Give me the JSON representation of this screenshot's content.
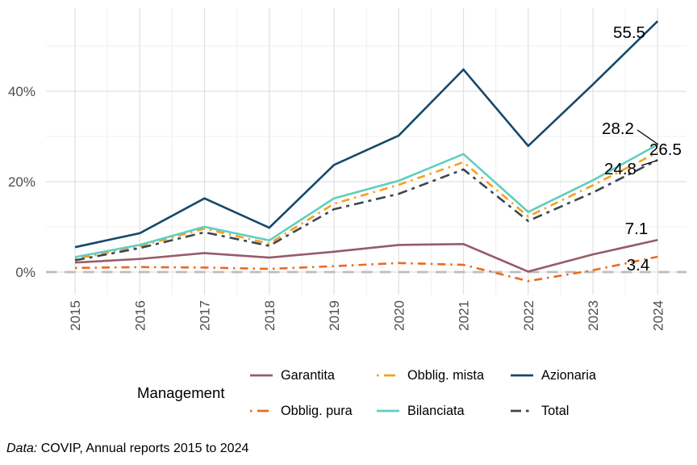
{
  "chart_data": {
    "type": "line",
    "x": [
      2015,
      2016,
      2017,
      2018,
      2019,
      2020,
      2021,
      2022,
      2023,
      2024
    ],
    "series": [
      {
        "name": "Garantita",
        "color": "#975B68",
        "linetype": "solid",
        "values": [
          2.1,
          2.9,
          4.2,
          3.2,
          4.5,
          6.0,
          6.2,
          0.1,
          3.9,
          7.1
        ],
        "end_label": "7.1"
      },
      {
        "name": "Obblig. pura",
        "color": "#EC6A20",
        "linetype": "dotdash",
        "values": [
          0.9,
          1.1,
          1.0,
          0.7,
          1.3,
          2.0,
          1.6,
          -2.0,
          0.4,
          3.4
        ],
        "end_label": "3.4"
      },
      {
        "name": "Obblig. mista",
        "color": "#F5A01E",
        "linetype": "dotdash",
        "values": [
          2.9,
          5.7,
          9.6,
          6.3,
          15.1,
          19.3,
          24.3,
          12.3,
          19.2,
          26.5
        ],
        "end_label": "26.5"
      },
      {
        "name": "Bilanciata",
        "color": "#5FCEC0",
        "linetype": "solid",
        "values": [
          3.3,
          6.0,
          10.0,
          7.0,
          16.3,
          20.2,
          26.1,
          13.3,
          20.3,
          28.2
        ],
        "end_label": "28.2"
      },
      {
        "name": "Azionaria",
        "color": "#16486C",
        "linetype": "solid",
        "values": [
          5.5,
          8.6,
          16.3,
          9.8,
          23.7,
          30.2,
          44.8,
          27.9,
          41.5,
          55.5
        ],
        "end_label": "55.5"
      },
      {
        "name": "Total",
        "color": "#3B4750",
        "linetype": "twodash",
        "values": [
          2.6,
          5.3,
          8.8,
          5.8,
          13.9,
          17.3,
          22.7,
          11.3,
          17.6,
          24.8
        ],
        "end_label": "24.8"
      }
    ],
    "y_ticks": [
      "0%",
      "20%",
      "40%"
    ],
    "y_tick_values": [
      0,
      20,
      40
    ],
    "ylim": [
      -5,
      58
    ],
    "grid": true,
    "zero_line": {
      "value": 0,
      "color": "#BDBDBD",
      "style": "dashed"
    },
    "legend_position": "bottom",
    "legend_title": "Management"
  },
  "legend": {
    "title": "Management",
    "items_row1": [
      "Garantita",
      "Obblig. mista",
      "Azionaria"
    ],
    "items_row2": [
      "Obblig. pura",
      "Bilanciata",
      "Total"
    ]
  },
  "caption": {
    "prefix": "Data:",
    "text": " COVIP, Annual reports 2015 to 2024"
  }
}
